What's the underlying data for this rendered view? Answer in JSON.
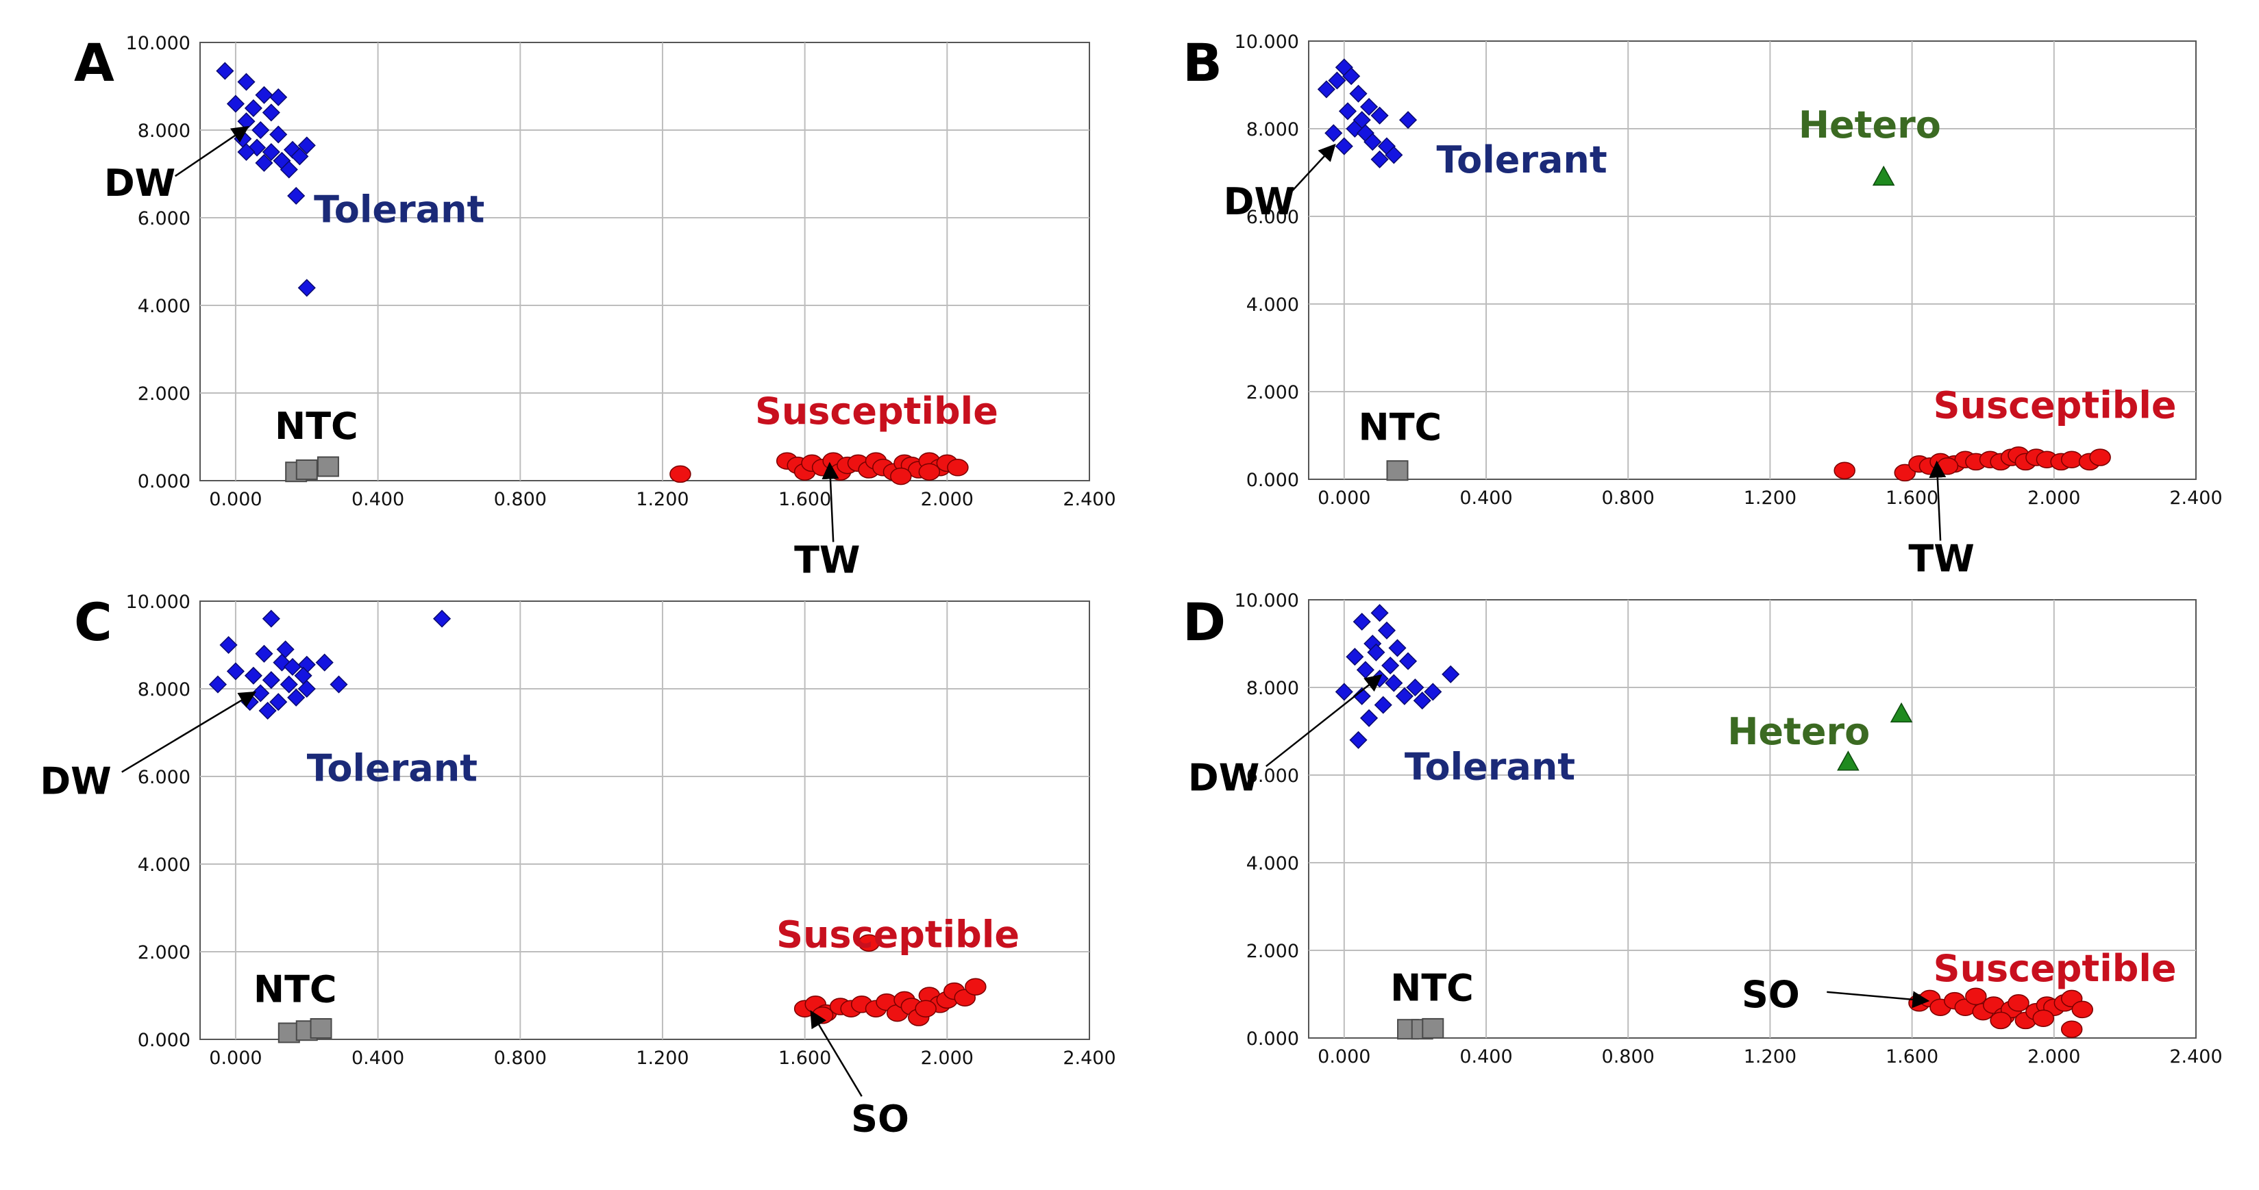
{
  "figure": {
    "panel_count": 4
  },
  "colors": {
    "tolerant": "#1414e0",
    "tolerant_label": "#1b2a78",
    "susceptible": "#ee1111",
    "susceptible_label": "#c8101e",
    "hetero": "#1f8a1f",
    "hetero_label": "#3b6a22",
    "ntc": "#8a8a8a",
    "grid": "#bdbdbd",
    "axis": "#555555"
  },
  "chart_data": [
    {
      "type": "scatter",
      "panel": "A",
      "xlim": [
        -0.1,
        2.4
      ],
      "ylim": [
        0,
        10
      ],
      "x_ticks": [
        "0.000",
        "0.400",
        "0.800",
        "1.200",
        "1.600",
        "2.000",
        "2.400"
      ],
      "y_ticks": [
        "0.000",
        "2.000",
        "4.000",
        "6.000",
        "8.000",
        "10.000"
      ],
      "series": [
        {
          "name": "Tolerant",
          "marker": "diamond",
          "points": [
            [
              -0.03,
              9.35
            ],
            [
              0.03,
              9.1
            ],
            [
              0.08,
              8.8
            ],
            [
              0.12,
              8.75
            ],
            [
              0.0,
              8.6
            ],
            [
              0.05,
              8.5
            ],
            [
              0.1,
              8.4
            ],
            [
              0.03,
              8.2
            ],
            [
              0.07,
              8.0
            ],
            [
              0.12,
              7.9
            ],
            [
              0.02,
              7.8
            ],
            [
              0.06,
              7.6
            ],
            [
              0.1,
              7.5
            ],
            [
              0.16,
              7.55
            ],
            [
              0.18,
              7.4
            ],
            [
              0.2,
              7.65
            ],
            [
              0.13,
              7.3
            ],
            [
              0.08,
              7.25
            ],
            [
              0.15,
              7.1
            ],
            [
              0.03,
              7.5
            ],
            [
              0.17,
              6.5
            ],
            [
              0.2,
              4.4
            ]
          ]
        },
        {
          "name": "Susceptible",
          "marker": "circle",
          "points": [
            [
              1.25,
              0.15
            ],
            [
              1.55,
              0.45
            ],
            [
              1.58,
              0.35
            ],
            [
              1.6,
              0.2
            ],
            [
              1.62,
              0.4
            ],
            [
              1.65,
              0.3
            ],
            [
              1.68,
              0.45
            ],
            [
              1.7,
              0.2
            ],
            [
              1.72,
              0.35
            ],
            [
              1.75,
              0.4
            ],
            [
              1.78,
              0.25
            ],
            [
              1.8,
              0.45
            ],
            [
              1.82,
              0.3
            ],
            [
              1.85,
              0.2
            ],
            [
              1.88,
              0.4
            ],
            [
              1.9,
              0.35
            ],
            [
              1.92,
              0.25
            ],
            [
              1.95,
              0.45
            ],
            [
              1.98,
              0.3
            ],
            [
              2.0,
              0.4
            ],
            [
              2.03,
              0.3
            ],
            [
              1.87,
              0.1
            ],
            [
              1.95,
              0.2
            ]
          ]
        },
        {
          "name": "NTC",
          "marker": "square",
          "points": [
            [
              0.17,
              0.2
            ],
            [
              0.2,
              0.25
            ],
            [
              0.26,
              0.32
            ]
          ]
        }
      ],
      "class_labels": [
        {
          "text": "Tolerant",
          "series": "Tolerant",
          "x": 0.22,
          "y": 5.9
        },
        {
          "text": "Susceptible",
          "series": "Susceptible",
          "x": 1.46,
          "y": 1.3
        },
        {
          "text": "NTC",
          "series": "NTC",
          "x": 0.11,
          "y": 0.95
        }
      ],
      "annotations": [
        {
          "text": "DW",
          "target": [
            0.03,
            8.05
          ],
          "label_at": [
            -0.37,
            6.5
          ],
          "tail": [
            -0.17,
            6.95
          ]
        },
        {
          "text": "TW",
          "target": [
            1.67,
            0.35
          ],
          "label_at": [
            1.57,
            -2.1
          ],
          "tail": [
            1.68,
            -1.4
          ]
        }
      ]
    },
    {
      "type": "scatter",
      "panel": "B",
      "xlim": [
        -0.1,
        2.4
      ],
      "ylim": [
        0,
        10
      ],
      "x_ticks": [
        "0.000",
        "0.400",
        "0.800",
        "1.200",
        "1.600",
        "2.000",
        "2.400"
      ],
      "y_ticks": [
        "0.000",
        "2.000",
        "4.000",
        "6.000",
        "8.000",
        "10.000"
      ],
      "series": [
        {
          "name": "Tolerant",
          "marker": "diamond",
          "points": [
            [
              -0.05,
              8.9
            ],
            [
              -0.02,
              9.1
            ],
            [
              0.0,
              9.4
            ],
            [
              0.02,
              9.2
            ],
            [
              0.04,
              8.8
            ],
            [
              0.07,
              8.5
            ],
            [
              0.1,
              8.3
            ],
            [
              0.03,
              8.0
            ],
            [
              0.06,
              7.9
            ],
            [
              0.08,
              7.7
            ],
            [
              0.12,
              7.6
            ],
            [
              0.0,
              7.6
            ],
            [
              0.1,
              7.3
            ],
            [
              0.14,
              7.4
            ],
            [
              -0.03,
              7.9
            ],
            [
              0.05,
              8.2
            ],
            [
              0.18,
              8.2
            ],
            [
              0.01,
              8.4
            ]
          ]
        },
        {
          "name": "Susceptible",
          "marker": "circle",
          "points": [
            [
              1.41,
              0.2
            ],
            [
              1.58,
              0.15
            ],
            [
              1.62,
              0.35
            ],
            [
              1.65,
              0.3
            ],
            [
              1.68,
              0.4
            ],
            [
              1.72,
              0.35
            ],
            [
              1.75,
              0.45
            ],
            [
              1.78,
              0.4
            ],
            [
              1.82,
              0.45
            ],
            [
              1.85,
              0.4
            ],
            [
              1.88,
              0.5
            ],
            [
              1.9,
              0.55
            ],
            [
              1.92,
              0.4
            ],
            [
              1.95,
              0.5
            ],
            [
              1.98,
              0.45
            ],
            [
              2.02,
              0.4
            ],
            [
              2.05,
              0.45
            ],
            [
              2.1,
              0.4
            ],
            [
              2.13,
              0.5
            ],
            [
              1.7,
              0.3
            ]
          ]
        },
        {
          "name": "Hetero",
          "marker": "triangle",
          "points": [
            [
              1.52,
              6.9
            ]
          ]
        },
        {
          "name": "NTC",
          "marker": "square",
          "points": [
            [
              0.15,
              0.2
            ]
          ]
        }
      ],
      "class_labels": [
        {
          "text": "Tolerant",
          "series": "Tolerant",
          "x": 0.26,
          "y": 7.0
        },
        {
          "text": "Hetero",
          "series": "Hetero",
          "x": 1.28,
          "y": 7.8
        },
        {
          "text": "Susceptible",
          "series": "Susceptible",
          "x": 1.66,
          "y": 1.4
        },
        {
          "text": "NTC",
          "series": "NTC",
          "x": 0.04,
          "y": 0.9
        }
      ],
      "annotations": [
        {
          "text": "DW",
          "target": [
            -0.03,
            7.6
          ],
          "label_at": [
            -0.34,
            6.05
          ],
          "tail": [
            -0.15,
            6.55
          ]
        },
        {
          "text": "TW",
          "target": [
            1.67,
            0.35
          ],
          "label_at": [
            1.59,
            -2.1
          ],
          "tail": [
            1.68,
            -1.4
          ]
        }
      ]
    },
    {
      "type": "scatter",
      "panel": "C",
      "xlim": [
        -0.1,
        2.4
      ],
      "ylim": [
        0,
        10
      ],
      "x_ticks": [
        "0.000",
        "0.400",
        "0.800",
        "1.200",
        "1.600",
        "2.000",
        "2.400"
      ],
      "y_ticks": [
        "0.000",
        "2.000",
        "4.000",
        "6.000",
        "8.000",
        "10.000"
      ],
      "series": [
        {
          "name": "Tolerant",
          "marker": "diamond",
          "points": [
            [
              -0.02,
              9.0
            ],
            [
              0.08,
              8.8
            ],
            [
              0.1,
              9.6
            ],
            [
              0.13,
              8.6
            ],
            [
              0.16,
              8.5
            ],
            [
              0.2,
              8.55
            ],
            [
              0.25,
              8.6
            ],
            [
              0.05,
              8.3
            ],
            [
              0.1,
              8.2
            ],
            [
              0.15,
              8.1
            ],
            [
              0.2,
              8.0
            ],
            [
              -0.05,
              8.1
            ],
            [
              0.0,
              8.4
            ],
            [
              0.07,
              7.9
            ],
            [
              0.12,
              7.7
            ],
            [
              0.17,
              7.8
            ],
            [
              0.09,
              7.5
            ],
            [
              0.04,
              7.7
            ],
            [
              0.29,
              8.1
            ],
            [
              0.58,
              9.6
            ],
            [
              0.14,
              8.9
            ],
            [
              0.19,
              8.3
            ]
          ]
        },
        {
          "name": "Susceptible",
          "marker": "circle",
          "points": [
            [
              1.6,
              0.7
            ],
            [
              1.63,
              0.8
            ],
            [
              1.66,
              0.6
            ],
            [
              1.7,
              0.75
            ],
            [
              1.73,
              0.7
            ],
            [
              1.76,
              0.8
            ],
            [
              1.8,
              0.7
            ],
            [
              1.83,
              0.85
            ],
            [
              1.86,
              0.6
            ],
            [
              1.88,
              0.9
            ],
            [
              1.9,
              0.75
            ],
            [
              1.92,
              0.5
            ],
            [
              1.95,
              1.0
            ],
            [
              1.98,
              0.8
            ],
            [
              2.0,
              0.9
            ],
            [
              2.02,
              1.1
            ],
            [
              2.05,
              0.95
            ],
            [
              2.08,
              1.2
            ],
            [
              1.78,
              2.2
            ],
            [
              1.65,
              0.55
            ],
            [
              1.94,
              0.7
            ]
          ]
        },
        {
          "name": "NTC",
          "marker": "square",
          "points": [
            [
              0.15,
              0.15
            ],
            [
              0.2,
              0.2
            ],
            [
              0.24,
              0.25
            ]
          ]
        }
      ],
      "class_labels": [
        {
          "text": "Tolerant",
          "series": "Tolerant",
          "x": 0.2,
          "y": 5.9
        },
        {
          "text": "Susceptible",
          "series": "Susceptible",
          "x": 1.52,
          "y": 2.1
        },
        {
          "text": "NTC",
          "series": "NTC",
          "x": 0.05,
          "y": 0.85
        }
      ],
      "annotations": [
        {
          "text": "DW",
          "target": [
            0.05,
            7.9
          ],
          "label_at": [
            -0.55,
            5.6
          ],
          "tail": [
            -0.32,
            6.1
          ]
        },
        {
          "text": "SO",
          "target": [
            1.62,
            0.6
          ],
          "label_at": [
            1.73,
            -2.1
          ],
          "tail": [
            1.76,
            -1.3
          ]
        }
      ]
    },
    {
      "type": "scatter",
      "panel": "D",
      "xlim": [
        -0.1,
        2.4
      ],
      "ylim": [
        0,
        10
      ],
      "x_ticks": [
        "0.000",
        "0.400",
        "0.800",
        "1.200",
        "1.600",
        "2.000",
        "2.400"
      ],
      "y_ticks": [
        "0.000",
        "2.000",
        "4.000",
        "6.000",
        "8.000",
        "10.000"
      ],
      "series": [
        {
          "name": "Tolerant",
          "marker": "diamond",
          "points": [
            [
              0.05,
              9.5
            ],
            [
              0.1,
              9.7
            ],
            [
              0.12,
              9.3
            ],
            [
              0.08,
              9.0
            ],
            [
              0.15,
              8.9
            ],
            [
              0.18,
              8.6
            ],
            [
              0.03,
              8.7
            ],
            [
              0.06,
              8.4
            ],
            [
              0.1,
              8.2
            ],
            [
              0.14,
              8.1
            ],
            [
              0.2,
              8.0
            ],
            [
              0.25,
              7.9
            ],
            [
              0.3,
              8.3
            ],
            [
              0.17,
              7.8
            ],
            [
              0.11,
              7.6
            ],
            [
              0.07,
              7.3
            ],
            [
              0.0,
              7.9
            ],
            [
              0.05,
              7.8
            ],
            [
              0.22,
              7.7
            ],
            [
              0.04,
              6.8
            ],
            [
              0.13,
              8.5
            ],
            [
              0.09,
              8.8
            ]
          ]
        },
        {
          "name": "Susceptible",
          "marker": "circle",
          "points": [
            [
              1.62,
              0.8
            ],
            [
              1.65,
              0.9
            ],
            [
              1.68,
              0.7
            ],
            [
              1.72,
              0.85
            ],
            [
              1.75,
              0.7
            ],
            [
              1.78,
              0.95
            ],
            [
              1.8,
              0.6
            ],
            [
              1.83,
              0.75
            ],
            [
              1.86,
              0.5
            ],
            [
              1.88,
              0.65
            ],
            [
              1.9,
              0.8
            ],
            [
              1.92,
              0.4
            ],
            [
              1.95,
              0.6
            ],
            [
              1.98,
              0.75
            ],
            [
              2.0,
              0.7
            ],
            [
              2.03,
              0.8
            ],
            [
              2.05,
              0.9
            ],
            [
              2.08,
              0.65
            ],
            [
              2.05,
              0.2
            ],
            [
              1.85,
              0.4
            ],
            [
              1.97,
              0.45
            ]
          ]
        },
        {
          "name": "Hetero",
          "marker": "triangle",
          "points": [
            [
              1.57,
              7.4
            ],
            [
              1.42,
              6.3
            ]
          ]
        },
        {
          "name": "NTC",
          "marker": "square",
          "points": [
            [
              0.18,
              0.2
            ],
            [
              0.22,
              0.2
            ],
            [
              0.25,
              0.22
            ]
          ]
        }
      ],
      "class_labels": [
        {
          "text": "Tolerant",
          "series": "Tolerant",
          "x": 0.17,
          "y": 5.9
        },
        {
          "text": "Hetero",
          "series": "Hetero",
          "x": 1.08,
          "y": 6.7
        },
        {
          "text": "Susceptible",
          "series": "Susceptible",
          "x": 1.66,
          "y": 1.3
        },
        {
          "text": "NTC",
          "series": "NTC",
          "x": 0.13,
          "y": 0.85
        }
      ],
      "annotations": [
        {
          "text": "DW",
          "target": [
            0.1,
            8.25
          ],
          "label_at": [
            -0.44,
            5.65
          ],
          "tail": [
            -0.22,
            6.2
          ]
        },
        {
          "text": "SO",
          "target": [
            1.64,
            0.85
          ],
          "label_at": [
            1.12,
            0.7
          ],
          "tail": [
            1.36,
            1.05
          ]
        }
      ]
    }
  ]
}
